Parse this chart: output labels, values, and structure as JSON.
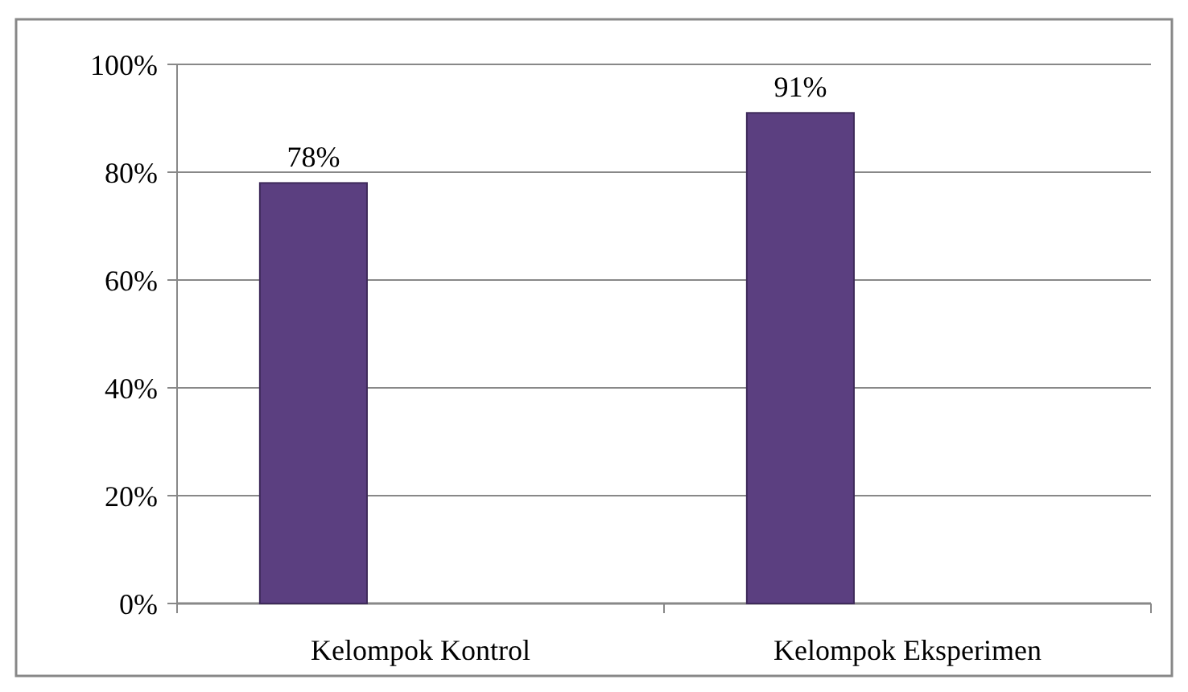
{
  "chart_data": {
    "type": "bar",
    "categories": [
      "Kelompok Kontrol",
      "Kelompok Eksperimen"
    ],
    "values": [
      78,
      91
    ],
    "color": "#5b3f80",
    "ylim": [
      0,
      100
    ],
    "yticks": [
      {
        "value": 0,
        "label": "0%"
      },
      {
        "value": 20,
        "label": "20%"
      },
      {
        "value": 40,
        "label": "40%"
      },
      {
        "value": 60,
        "label": "60%"
      },
      {
        "value": 80,
        "label": "80%"
      },
      {
        "value": 100,
        "label": "100%"
      }
    ],
    "value_labels": [
      "78%",
      "91%"
    ],
    "grid": "y"
  }
}
